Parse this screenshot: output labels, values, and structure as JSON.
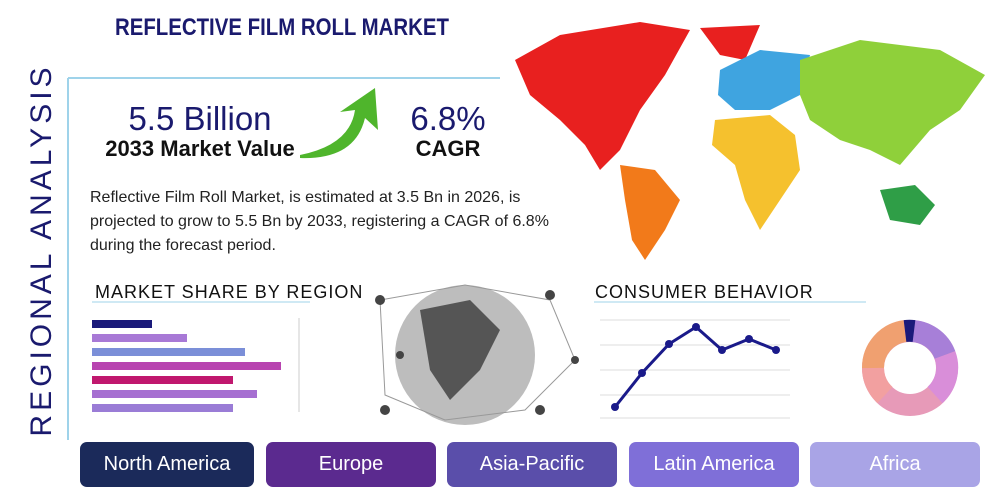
{
  "header": {
    "title": "REFLECTIVE FILM ROLL MARKET",
    "side_label": "REGIONAL ANALYSIS"
  },
  "stats": {
    "market_value": "5.5 Billion",
    "market_value_label": "2033 Market Value",
    "cagr": "6.8%",
    "cagr_label": "CAGR"
  },
  "description": "Reflective Film Roll Market, is estimated at 3.5 Bn in 2026, is projected to grow to 5.5 Bn by 2033, registering a CAGR of 6.8% during the forecast period.",
  "sections": {
    "market_share": "MARKET SHARE BY REGION",
    "consumer_behavior": "CONSUMER BEHAVIOR"
  },
  "regions": [
    "North America",
    "Europe",
    "Asia-Pacific",
    "Latin America",
    "Africa"
  ]
}
